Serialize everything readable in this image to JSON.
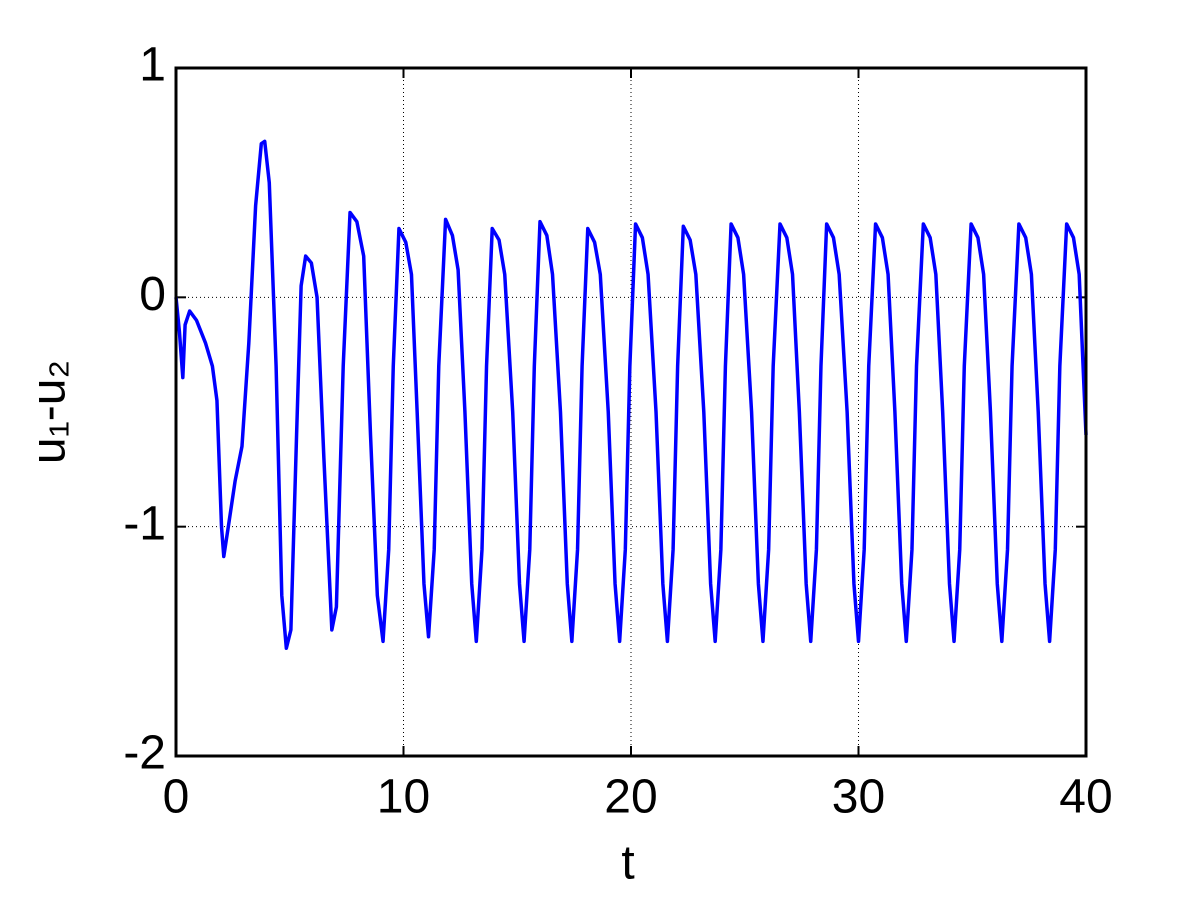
{
  "chart_data": {
    "type": "line",
    "xlabel": "t",
    "ylabel": "u₁-u₂",
    "xlim": [
      0,
      40
    ],
    "ylim": [
      -2,
      1
    ],
    "xticks": [
      0,
      10,
      20,
      30,
      40
    ],
    "yticks": [
      -2,
      -1,
      0,
      1
    ],
    "grid": true,
    "series": [
      {
        "color": "#0000ff",
        "x": [
          0,
          0.15,
          0.3,
          0.4,
          0.6,
          0.9,
          1.3,
          1.6,
          1.8,
          2.0,
          2.1,
          2.3,
          2.6,
          2.9,
          3.2,
          3.5,
          3.75,
          3.9,
          4.1,
          4.4,
          4.65,
          4.85,
          5.05,
          5.3,
          5.5,
          5.7,
          5.95,
          6.2,
          6.5,
          6.85,
          7.05,
          7.35,
          7.65,
          7.95,
          8.25,
          8.55,
          8.85,
          9.1,
          9.35,
          9.55,
          9.8,
          10.1,
          10.35,
          10.6,
          10.9,
          11.1,
          11.35,
          11.55,
          11.85,
          12.15,
          12.4,
          12.7,
          13.0,
          13.2,
          13.45,
          13.65,
          13.9,
          14.2,
          14.45,
          14.8,
          15.1,
          15.3,
          15.55,
          15.75,
          16.0,
          16.3,
          16.55,
          16.9,
          17.2,
          17.4,
          17.65,
          17.85,
          18.1,
          18.4,
          18.65,
          19.0,
          19.3,
          19.5,
          19.75,
          19.95,
          20.2,
          20.5,
          20.75,
          21.1,
          21.4,
          21.6,
          21.85,
          22.05,
          22.3,
          22.6,
          22.85,
          23.2,
          23.5,
          23.7,
          23.95,
          24.15,
          24.4,
          24.7,
          24.95,
          25.3,
          25.6,
          25.8,
          26.05,
          26.25,
          26.55,
          26.85,
          27.1,
          27.4,
          27.7,
          27.9,
          28.15,
          28.35,
          28.6,
          28.9,
          29.15,
          29.5,
          29.8,
          30.0,
          30.25,
          30.45,
          30.75,
          31.05,
          31.3,
          31.6,
          31.9,
          32.1,
          32.35,
          32.55,
          32.85,
          33.15,
          33.4,
          33.7,
          34.0,
          34.2,
          34.45,
          34.65,
          34.95,
          35.25,
          35.5,
          35.8,
          36.1,
          36.3,
          36.55,
          36.75,
          37.05,
          37.35,
          37.6,
          37.9,
          38.2,
          38.4,
          38.65,
          38.85,
          39.15,
          39.45,
          39.7,
          40.0
        ],
        "values": [
          0,
          -0.15,
          -0.35,
          -0.12,
          -0.06,
          -0.1,
          -0.2,
          -0.3,
          -0.45,
          -1.0,
          -1.13,
          -1.0,
          -0.8,
          -0.65,
          -0.2,
          0.4,
          0.67,
          0.68,
          0.5,
          -0.3,
          -1.3,
          -1.53,
          -1.45,
          -0.6,
          0.05,
          0.18,
          0.15,
          0.0,
          -0.7,
          -1.45,
          -1.35,
          -0.3,
          0.37,
          0.33,
          0.18,
          -0.6,
          -1.3,
          -1.5,
          -1.1,
          -0.3,
          0.3,
          0.24,
          0.1,
          -0.5,
          -1.25,
          -1.48,
          -1.1,
          -0.3,
          0.34,
          0.27,
          0.12,
          -0.5,
          -1.25,
          -1.5,
          -1.1,
          -0.3,
          0.3,
          0.25,
          0.1,
          -0.5,
          -1.25,
          -1.5,
          -1.1,
          -0.3,
          0.33,
          0.27,
          0.1,
          -0.5,
          -1.25,
          -1.5,
          -1.1,
          -0.3,
          0.3,
          0.24,
          0.1,
          -0.5,
          -1.25,
          -1.5,
          -1.1,
          -0.3,
          0.32,
          0.26,
          0.1,
          -0.5,
          -1.25,
          -1.5,
          -1.1,
          -0.3,
          0.31,
          0.25,
          0.1,
          -0.5,
          -1.25,
          -1.5,
          -1.1,
          -0.3,
          0.32,
          0.26,
          0.1,
          -0.5,
          -1.25,
          -1.5,
          -1.1,
          -0.3,
          0.32,
          0.26,
          0.1,
          -0.5,
          -1.25,
          -1.5,
          -1.1,
          -0.3,
          0.32,
          0.26,
          0.1,
          -0.5,
          -1.25,
          -1.5,
          -1.1,
          -0.3,
          0.32,
          0.26,
          0.1,
          -0.5,
          -1.25,
          -1.5,
          -1.1,
          -0.3,
          0.32,
          0.26,
          0.1,
          -0.5,
          -1.25,
          -1.5,
          -1.1,
          -0.3,
          0.32,
          0.26,
          0.1,
          -0.5,
          -1.25,
          -1.5,
          -1.1,
          -0.3,
          0.32,
          0.26,
          0.1,
          -0.5,
          -1.25,
          -1.5,
          -1.1,
          -0.3,
          0.32,
          0.26,
          0.1,
          -0.6
        ]
      }
    ]
  }
}
